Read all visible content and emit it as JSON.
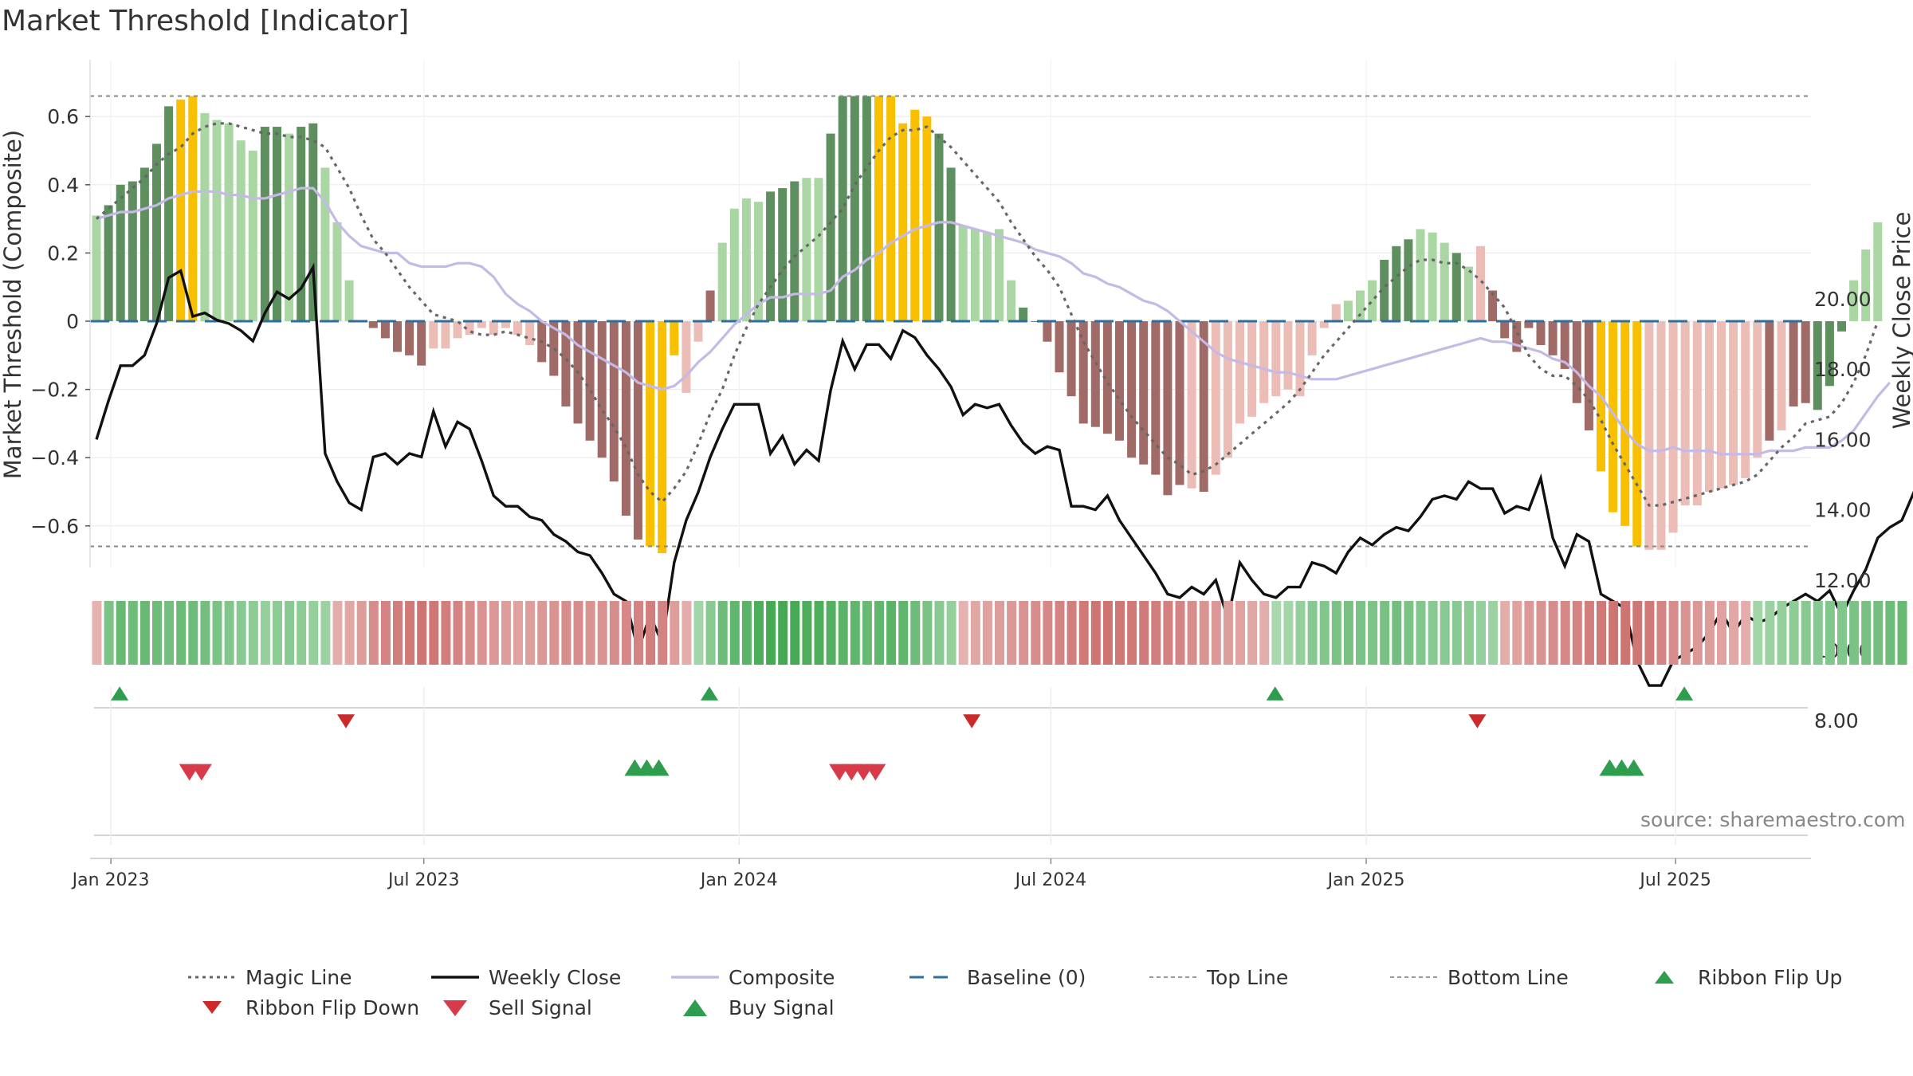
{
  "chart_data": {
    "type": "bar",
    "title": "Market Threshold [Indicator]",
    "ylabel_left": "Market Threshold (Composite)",
    "ylabel_right": "Weekly Close Price",
    "source": "source: sharemaestro.com",
    "ylim_left": [
      -0.72,
      0.76
    ],
    "ylim_right": [
      7.5,
      22.2
    ],
    "left_ticks": [
      "0.6",
      "0.4",
      "0.2",
      "0",
      "−0.2",
      "−0.4",
      "−0.6"
    ],
    "left_tick_values": [
      0.6,
      0.4,
      0.2,
      0,
      -0.2,
      -0.4,
      -0.6
    ],
    "right_ticks": [
      "20.00",
      "18.00",
      "16.00",
      "14.00",
      "12.00",
      "10.00",
      "8.00"
    ],
    "right_tick_values": [
      20,
      18,
      16,
      14,
      12,
      10,
      8
    ],
    "x_ticks": [
      "Jan 2023",
      "Jul 2023",
      "Jan 2024",
      "Jul 2024",
      "Jan 2025",
      "Jul 2025"
    ],
    "x_tick_weeks": [
      1.2,
      27.2,
      53.4,
      79.3,
      105.5,
      131.2
    ],
    "top_line": 0.66,
    "bottom_line": -0.66,
    "colors": {
      "dark_green": "#5e8f5e",
      "light_green": "#a9d6a3",
      "dark_red": "#a06a66",
      "light_red": "#ecbcb6",
      "extreme": "#f8c000",
      "magic": "#666666",
      "close": "#111111",
      "composite": "#c5b9e6",
      "baseline": "#2f6f9f",
      "buy": "#2e9e4e",
      "sell": "#d93a49"
    },
    "composite_bars": [
      0.31,
      0.34,
      0.4,
      0.41,
      0.45,
      0.52,
      0.63,
      0.65,
      0.66,
      0.61,
      0.59,
      0.58,
      0.53,
      0.5,
      0.57,
      0.57,
      0.55,
      0.57,
      0.58,
      0.45,
      0.29,
      0.12,
      0,
      -0.02,
      -0.05,
      -0.09,
      -0.1,
      -0.13,
      -0.08,
      -0.08,
      -0.05,
      -0.04,
      -0.02,
      -0.04,
      -0.02,
      -0.04,
      -0.07,
      -0.12,
      -0.16,
      -0.25,
      -0.3,
      -0.35,
      -0.4,
      -0.47,
      -0.57,
      -0.64,
      -0.66,
      -0.68,
      -0.1,
      -0.21,
      -0.06,
      0.09,
      0.23,
      0.33,
      0.36,
      0.35,
      0.38,
      0.39,
      0.41,
      0.42,
      0.42,
      0.55,
      0.66,
      0.66,
      0.66,
      0.66,
      0.66,
      0.58,
      0.62,
      0.6,
      0.55,
      0.45,
      0.28,
      0.27,
      0.26,
      0.27,
      0.12,
      0.04,
      0,
      -0.06,
      -0.15,
      -0.22,
      -0.3,
      -0.31,
      -0.33,
      -0.35,
      -0.4,
      -0.42,
      -0.45,
      -0.51,
      -0.48,
      -0.49,
      -0.5,
      -0.45,
      -0.4,
      -0.3,
      -0.28,
      -0.24,
      -0.22,
      -0.2,
      -0.22,
      -0.1,
      -0.02,
      0.05,
      0.06,
      0.09,
      0.12,
      0.18,
      0.22,
      0.24,
      0.27,
      0.26,
      0.23,
      0.2,
      0.16,
      0.22,
      0.09,
      -0.05,
      -0.09,
      -0.02,
      -0.07,
      -0.1,
      -0.14,
      -0.24,
      -0.32,
      -0.44,
      -0.56,
      -0.6,
      -0.66,
      -0.67,
      -0.67,
      -0.62,
      -0.54,
      -0.54,
      -0.5,
      -0.49,
      -0.48,
      -0.46,
      -0.4,
      -0.35,
      -0.32,
      -0.25,
      -0.24,
      -0.26,
      -0.19,
      -0.03,
      0.12,
      0.21,
      0.29
    ],
    "bar_color_codes": "LDDDDDDYYLLLLLDDLDDLLLddddddllllllllldddddddddYYYlldLLLLDDDLLDDDDYYYYYDDLLLLLDdddddddddddddldlllllllllllLLLDDDLLLDLldddddddddYYYYlllllllllldlddDDD",
    "weekly_close": [
      16.0,
      17.1,
      18.1,
      18.1,
      18.4,
      19.3,
      20.6,
      20.8,
      19.5,
      19.6,
      19.4,
      19.3,
      19.1,
      18.8,
      19.6,
      20.2,
      20.0,
      20.3,
      20.9,
      15.6,
      14.8,
      14.2,
      14.0,
      15.5,
      15.6,
      15.3,
      15.6,
      15.5,
      16.8,
      15.8,
      16.5,
      16.3,
      15.4,
      14.4,
      14.1,
      14.1,
      13.8,
      13.7,
      13.3,
      13.1,
      12.8,
      12.7,
      12.2,
      11.6,
      11.4,
      10.0,
      11.0,
      10.2,
      12.5,
      13.7,
      14.5,
      15.5,
      16.3,
      17.0,
      17.0,
      17.0,
      15.6,
      16.1,
      15.3,
      15.7,
      15.4,
      17.4,
      18.8,
      18.0,
      18.7,
      18.7,
      18.3,
      19.1,
      18.9,
      18.4,
      18.0,
      17.5,
      16.7,
      17.0,
      16.9,
      17.0,
      16.4,
      15.9,
      15.6,
      15.8,
      15.7,
      14.1,
      14.1,
      14.0,
      14.4,
      13.7,
      13.2,
      12.7,
      12.2,
      11.6,
      11.5,
      11.8,
      11.6,
      12.0,
      10.9,
      12.5,
      12.0,
      11.6,
      11.5,
      11.8,
      11.8,
      12.5,
      12.4,
      12.2,
      12.8,
      13.2,
      13.0,
      13.3,
      13.5,
      13.4,
      13.8,
      14.3,
      14.4,
      14.3,
      14.8,
      14.6,
      14.6,
      13.9,
      14.1,
      14.0,
      14.9,
      13.2,
      12.4,
      13.3,
      13.1,
      11.6,
      11.4,
      11.2,
      9.7,
      9.0,
      9.0,
      9.7,
      9.9,
      10.1,
      10.5,
      11.1,
      10.5,
      11.0,
      10.8,
      10.9,
      11.2,
      11.4,
      11.6,
      11.4,
      11.7,
      11.0,
      11.7,
      12.3,
      13.2,
      13.5,
      13.7,
      14.5,
      14.6,
      15.5
    ],
    "composite_line": [
      0.3,
      0.31,
      0.32,
      0.32,
      0.33,
      0.34,
      0.36,
      0.37,
      0.38,
      0.38,
      0.38,
      0.37,
      0.37,
      0.36,
      0.36,
      0.37,
      0.38,
      0.39,
      0.39,
      0.35,
      0.29,
      0.25,
      0.22,
      0.21,
      0.2,
      0.2,
      0.17,
      0.16,
      0.16,
      0.16,
      0.17,
      0.17,
      0.16,
      0.13,
      0.08,
      0.05,
      0.03,
      0.0,
      -0.02,
      -0.04,
      -0.07,
      -0.09,
      -0.11,
      -0.13,
      -0.15,
      -0.18,
      -0.19,
      -0.2,
      -0.19,
      -0.16,
      -0.12,
      -0.09,
      -0.05,
      -0.01,
      0.02,
      0.05,
      0.07,
      0.07,
      0.08,
      0.08,
      0.08,
      0.09,
      0.13,
      0.15,
      0.18,
      0.2,
      0.23,
      0.25,
      0.27,
      0.28,
      0.29,
      0.29,
      0.28,
      0.27,
      0.26,
      0.25,
      0.24,
      0.23,
      0.21,
      0.2,
      0.19,
      0.17,
      0.14,
      0.13,
      0.11,
      0.1,
      0.08,
      0.06,
      0.05,
      0.03,
      0.0,
      -0.03,
      -0.06,
      -0.09,
      -0.11,
      -0.12,
      -0.13,
      -0.14,
      -0.15,
      -0.15,
      -0.16,
      -0.17,
      -0.17,
      -0.17,
      -0.16,
      -0.15,
      -0.14,
      -0.13,
      -0.12,
      -0.11,
      -0.1,
      -0.09,
      -0.08,
      -0.07,
      -0.06,
      -0.05,
      -0.06,
      -0.06,
      -0.07,
      -0.08,
      -0.09,
      -0.11,
      -0.12,
      -0.15,
      -0.19,
      -0.22,
      -0.27,
      -0.32,
      -0.36,
      -0.38,
      -0.38,
      -0.37,
      -0.38,
      -0.38,
      -0.38,
      -0.39,
      -0.39,
      -0.39,
      -0.39,
      -0.38,
      -0.38,
      -0.38,
      -0.37,
      -0.37,
      -0.37,
      -0.35,
      -0.32,
      -0.27,
      -0.22,
      -0.18
    ],
    "magic_line": [
      0.3,
      0.33,
      0.36,
      0.39,
      0.42,
      0.46,
      0.49,
      0.51,
      0.55,
      0.57,
      0.58,
      0.58,
      0.57,
      0.56,
      0.55,
      0.55,
      0.54,
      0.54,
      0.53,
      0.51,
      0.45,
      0.39,
      0.31,
      0.24,
      0.2,
      0.15,
      0.1,
      0.06,
      0.02,
      0.01,
      0.0,
      -0.03,
      -0.04,
      -0.04,
      -0.03,
      -0.04,
      -0.05,
      -0.06,
      -0.08,
      -0.11,
      -0.15,
      -0.2,
      -0.26,
      -0.31,
      -0.37,
      -0.45,
      -0.5,
      -0.53,
      -0.49,
      -0.44,
      -0.36,
      -0.27,
      -0.2,
      -0.1,
      -0.02,
      0.05,
      0.1,
      0.15,
      0.19,
      0.22,
      0.25,
      0.29,
      0.33,
      0.4,
      0.45,
      0.5,
      0.54,
      0.56,
      0.56,
      0.57,
      0.54,
      0.51,
      0.47,
      0.43,
      0.39,
      0.35,
      0.29,
      0.24,
      0.19,
      0.15,
      0.1,
      0.02,
      -0.06,
      -0.12,
      -0.18,
      -0.23,
      -0.28,
      -0.32,
      -0.36,
      -0.4,
      -0.42,
      -0.45,
      -0.44,
      -0.42,
      -0.39,
      -0.36,
      -0.33,
      -0.3,
      -0.27,
      -0.24,
      -0.2,
      -0.15,
      -0.1,
      -0.06,
      -0.02,
      0.02,
      0.06,
      0.1,
      0.13,
      0.16,
      0.18,
      0.18,
      0.17,
      0.17,
      0.15,
      0.12,
      0.08,
      0.04,
      -0.03,
      -0.1,
      -0.14,
      -0.16,
      -0.16,
      -0.19,
      -0.23,
      -0.29,
      -0.36,
      -0.42,
      -0.48,
      -0.54,
      -0.54,
      -0.53,
      -0.52,
      -0.51,
      -0.5,
      -0.49,
      -0.48,
      -0.47,
      -0.45,
      -0.41,
      -0.37,
      -0.34,
      -0.3,
      -0.29,
      -0.28,
      -0.24,
      -0.18,
      -0.1,
      0.0
    ],
    "ribbon_values": [
      -0.25,
      0.6,
      0.75,
      0.7,
      0.75,
      0.7,
      0.65,
      0.72,
      0.7,
      0.65,
      0.6,
      0.55,
      0.5,
      0.45,
      0.4,
      0.45,
      0.5,
      0.45,
      0.4,
      0.35,
      -0.3,
      -0.35,
      -0.45,
      -0.6,
      -0.7,
      -0.75,
      -0.8,
      -0.85,
      -0.82,
      -0.75,
      -0.7,
      -0.6,
      -0.55,
      -0.5,
      -0.45,
      -0.4,
      -0.45,
      -0.5,
      -0.55,
      -0.6,
      -0.6,
      -0.55,
      -0.55,
      -0.6,
      -0.65,
      -0.7,
      -0.75,
      -0.7,
      -0.45,
      -0.3,
      0.3,
      0.5,
      0.7,
      0.8,
      0.85,
      0.95,
      1.0,
      1.0,
      1.0,
      0.95,
      0.95,
      0.9,
      0.85,
      0.8,
      0.75,
      0.8,
      0.85,
      0.8,
      0.7,
      0.6,
      0.5,
      0.4,
      -0.25,
      -0.35,
      -0.4,
      -0.45,
      -0.5,
      -0.55,
      -0.6,
      -0.65,
      -0.7,
      -0.75,
      -0.8,
      -0.85,
      -0.85,
      -0.82,
      -0.8,
      -0.78,
      -0.75,
      -0.72,
      -0.68,
      -0.6,
      -0.55,
      -0.5,
      -0.45,
      -0.4,
      -0.35,
      -0.3,
      0.25,
      0.3,
      0.4,
      0.5,
      0.55,
      0.6,
      0.62,
      0.6,
      0.58,
      0.62,
      0.65,
      0.6,
      0.55,
      0.5,
      0.5,
      0.5,
      0.45,
      0.4,
      0.35,
      -0.3,
      -0.4,
      -0.5,
      -0.55,
      -0.6,
      -0.65,
      -0.7,
      -0.75,
      -0.8,
      -0.85,
      -0.85,
      -0.82,
      -0.8,
      -0.7,
      -0.6,
      -0.55,
      -0.5,
      -0.45,
      -0.4,
      -0.35,
      -0.3,
      0.3,
      0.35,
      0.4,
      0.45,
      0.5,
      0.5,
      0.55,
      0.55,
      0.6,
      0.62,
      0.65,
      0.7,
      0.75
    ],
    "signals": {
      "ribbon_flip_up": [
        1,
        50,
        97,
        131
      ],
      "ribbon_flip_down": [
        20,
        72,
        114
      ],
      "sell_signal": [
        7,
        8,
        61,
        62,
        63,
        64
      ],
      "buy_signal": [
        44,
        45,
        46,
        125,
        126,
        127
      ]
    },
    "legend": [
      {
        "key": "magic",
        "label": "Magic Line"
      },
      {
        "key": "close",
        "label": "Weekly Close"
      },
      {
        "key": "composite",
        "label": "Composite"
      },
      {
        "key": "baseline",
        "label": "Baseline (0)"
      },
      {
        "key": "top",
        "label": "Top Line"
      },
      {
        "key": "bottom",
        "label": "Bottom Line"
      },
      {
        "key": "flip_up",
        "label": "Ribbon Flip Up"
      },
      {
        "key": "flip_down",
        "label": "Ribbon Flip Down"
      },
      {
        "key": "sell",
        "label": "Sell Signal"
      },
      {
        "key": "buy",
        "label": "Buy Signal"
      }
    ]
  }
}
